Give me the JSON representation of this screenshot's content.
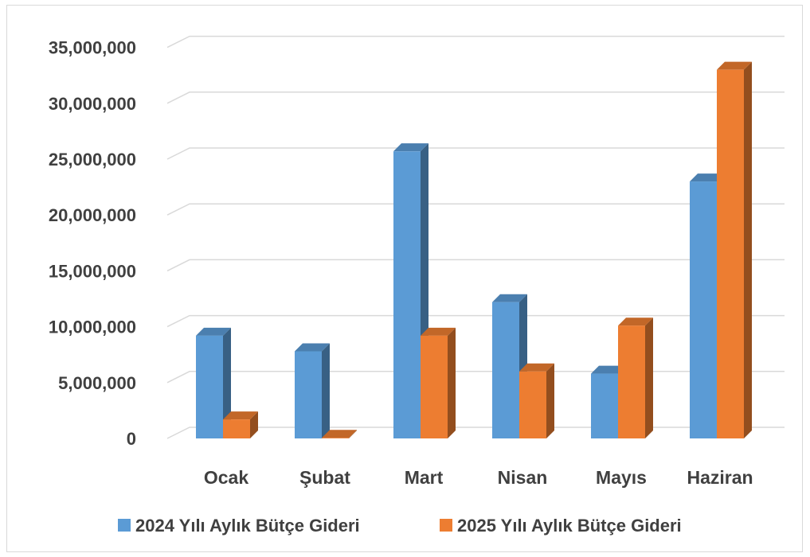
{
  "chart_data": {
    "type": "bar",
    "style": "3d-clustered-column",
    "categories": [
      "Ocak",
      "Şubat",
      "Mart",
      "Nisan",
      "Mayıs",
      "Haziran"
    ],
    "series": [
      {
        "name": "2024 Yılı Aylık Bütçe Gideri",
        "color": "#5B9BD5",
        "values": [
          9200000,
          7800000,
          25700000,
          12200000,
          5800000,
          23000000
        ]
      },
      {
        "name": "2025 Yılı Aylık Bütçe Gideri",
        "color": "#ED7D31",
        "values": [
          1700000,
          50000,
          9200000,
          6000000,
          10100000,
          33000000
        ]
      }
    ],
    "y_ticks": [
      "0",
      "5,000,000",
      "10,000,000",
      "15,000,000",
      "20,000,000",
      "25,000,000",
      "30,000,000",
      "35,000,000"
    ],
    "ylim": [
      0,
      35000000
    ],
    "grid": true,
    "legend_position": "bottom",
    "title": "",
    "xlabel": "",
    "ylabel": ""
  }
}
